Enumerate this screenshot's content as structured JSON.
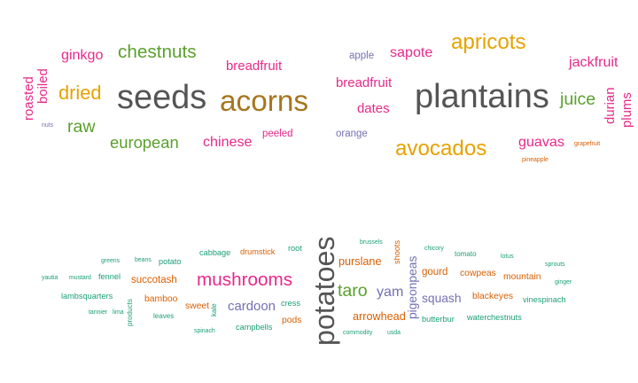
{
  "chart_data": [
    {
      "type": "wordcloud",
      "colors": {
        "magenta": "#e7298a",
        "orange": "#e6a200",
        "green": "#5aa02c",
        "grey": "#555555",
        "brown": "#a6761d",
        "purple": "#7570b3",
        "teal": "#1b9e77",
        "rust": "#d95f02"
      },
      "words": [
        {
          "text": "seeds",
          "color": "grey"
        },
        {
          "text": "acorns",
          "color": "brown"
        },
        {
          "text": "chestnuts",
          "color": "green"
        },
        {
          "text": "dried",
          "color": "orange"
        },
        {
          "text": "raw",
          "color": "green"
        },
        {
          "text": "european",
          "color": "green"
        },
        {
          "text": "chinese",
          "color": "magenta"
        },
        {
          "text": "ginkgo",
          "color": "magenta"
        },
        {
          "text": "breadfruit",
          "color": "magenta"
        },
        {
          "text": "peeled",
          "color": "magenta"
        },
        {
          "text": "roasted",
          "color": "magenta"
        },
        {
          "text": "boiled",
          "color": "magenta"
        },
        {
          "text": "nuts",
          "color": "purple"
        }
      ]
    },
    {
      "type": "wordcloud",
      "colors": {
        "magenta": "#e7298a",
        "orange": "#e6a200",
        "green": "#5aa02c",
        "grey": "#555555",
        "purple": "#7570b3",
        "rust": "#d95f02"
      },
      "words": [
        {
          "text": "plantains",
          "color": "grey"
        },
        {
          "text": "apricots",
          "color": "orange"
        },
        {
          "text": "avocados",
          "color": "orange"
        },
        {
          "text": "juice",
          "color": "green"
        },
        {
          "text": "guavas",
          "color": "magenta"
        },
        {
          "text": "jackfruit",
          "color": "magenta"
        },
        {
          "text": "sapote",
          "color": "magenta"
        },
        {
          "text": "breadfruit",
          "color": "magenta"
        },
        {
          "text": "dates",
          "color": "magenta"
        },
        {
          "text": "apple",
          "color": "purple"
        },
        {
          "text": "orange",
          "color": "purple"
        },
        {
          "text": "durian",
          "color": "magenta"
        },
        {
          "text": "plums",
          "color": "magenta"
        },
        {
          "text": "grapefruit",
          "color": "rust"
        },
        {
          "text": "pineapple",
          "color": "rust"
        }
      ]
    },
    {
      "type": "wordcloud",
      "colors": {
        "magenta": "#e7298a",
        "green": "#5aa02c",
        "grey": "#555555",
        "purple": "#7570b3",
        "teal": "#1b9e77",
        "rust": "#d95f02"
      },
      "words": [
        {
          "text": "potatoes",
          "color": "grey"
        },
        {
          "text": "mushrooms",
          "color": "magenta"
        },
        {
          "text": "taro",
          "color": "green"
        },
        {
          "text": "yam",
          "color": "purple"
        },
        {
          "text": "cardoon",
          "color": "purple"
        },
        {
          "text": "squash",
          "color": "purple"
        },
        {
          "text": "pigeonpeas",
          "color": "purple"
        },
        {
          "text": "purslane",
          "color": "rust"
        },
        {
          "text": "gourd",
          "color": "rust"
        },
        {
          "text": "arrowhead",
          "color": "rust"
        },
        {
          "text": "cowpeas",
          "color": "rust"
        },
        {
          "text": "blackeyes",
          "color": "rust"
        },
        {
          "text": "mountain",
          "color": "rust"
        },
        {
          "text": "succotash",
          "color": "rust"
        },
        {
          "text": "bamboo",
          "color": "rust"
        },
        {
          "text": "sweet",
          "color": "rust"
        },
        {
          "text": "pods",
          "color": "rust"
        },
        {
          "text": "drumstick",
          "color": "rust"
        },
        {
          "text": "shoots",
          "color": "rust"
        },
        {
          "text": "cabbage",
          "color": "teal"
        },
        {
          "text": "root",
          "color": "teal"
        },
        {
          "text": "potato",
          "color": "teal"
        },
        {
          "text": "fennel",
          "color": "teal"
        },
        {
          "text": "lambsquarters",
          "color": "teal"
        },
        {
          "text": "campbells",
          "color": "teal"
        },
        {
          "text": "cress",
          "color": "teal"
        },
        {
          "text": "butterbur",
          "color": "teal"
        },
        {
          "text": "waterchestnuts",
          "color": "teal"
        },
        {
          "text": "vinespinach",
          "color": "teal"
        },
        {
          "text": "tomato",
          "color": "teal"
        },
        {
          "text": "greens",
          "color": "teal"
        },
        {
          "text": "beans",
          "color": "teal"
        },
        {
          "text": "mustard",
          "color": "teal"
        },
        {
          "text": "yautia",
          "color": "teal"
        },
        {
          "text": "tannier",
          "color": "teal"
        },
        {
          "text": "lima",
          "color": "teal"
        },
        {
          "text": "products",
          "color": "teal"
        },
        {
          "text": "leaves",
          "color": "teal"
        },
        {
          "text": "kale",
          "color": "teal"
        },
        {
          "text": "spinach",
          "color": "teal"
        },
        {
          "text": "commodity",
          "color": "teal"
        },
        {
          "text": "usda",
          "color": "teal"
        },
        {
          "text": "brussels",
          "color": "teal"
        },
        {
          "text": "chicory",
          "color": "teal"
        },
        {
          "text": "lotus",
          "color": "teal"
        },
        {
          "text": "sprouts",
          "color": "teal"
        },
        {
          "text": "ginger",
          "color": "teal"
        }
      ]
    }
  ]
}
